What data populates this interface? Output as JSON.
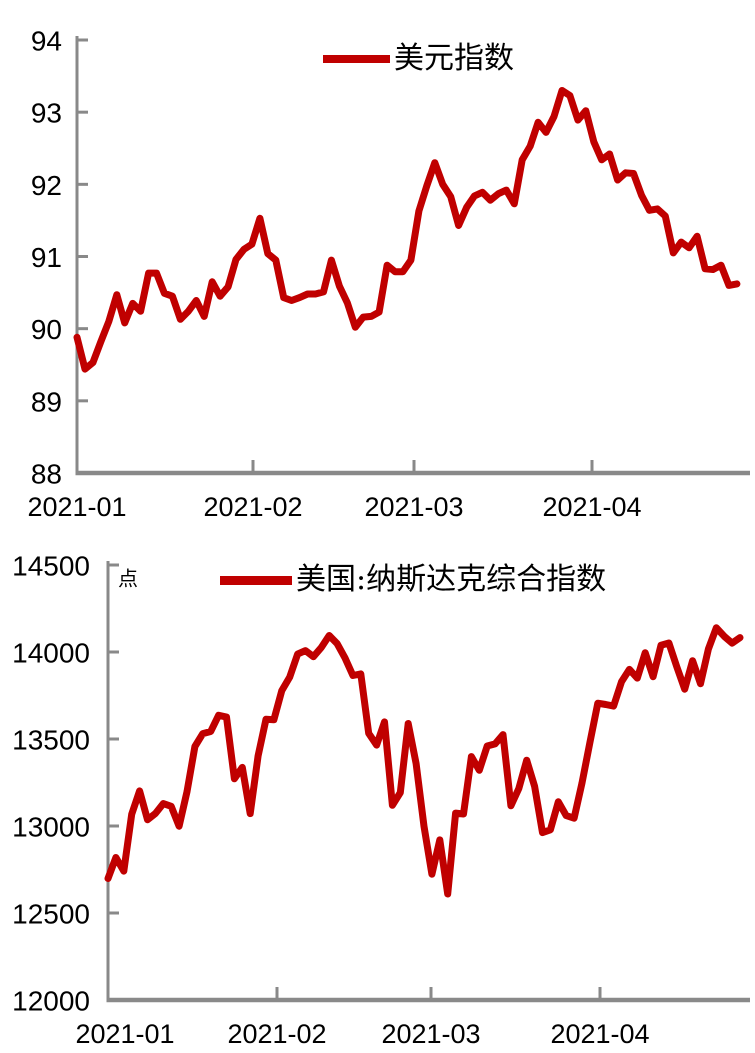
{
  "page": {
    "background": "#ffffff"
  },
  "chart_data": [
    {
      "type": "line",
      "title": "",
      "legend": "美元指数",
      "unit": "",
      "color": "#c00000",
      "axis_color": "#898989",
      "text_color": "#000000",
      "grid": false,
      "legend_position": "top-center",
      "x_tick_labels": [
        "2021-01",
        "2021-02",
        "2021-03",
        "2021-04"
      ],
      "x_range": "2021-01-04 to 2021-04-29, daily trading sessions",
      "ylim": [
        88,
        94
      ],
      "y_ticks": [
        88,
        89,
        90,
        91,
        92,
        93,
        94
      ],
      "series": [
        {
          "name": "美元指数",
          "id": "usd-index",
          "values": [
            89.88,
            89.44,
            89.53,
            89.82,
            90.1,
            90.47,
            90.08,
            90.35,
            90.24,
            90.77,
            90.77,
            90.49,
            90.45,
            90.13,
            90.24,
            90.39,
            90.17,
            90.65,
            90.45,
            90.58,
            90.96,
            91.1,
            91.17,
            91.53,
            91.04,
            90.95,
            90.43,
            90.39,
            90.43,
            90.48,
            90.48,
            90.51,
            90.95,
            90.59,
            90.36,
            90.02,
            90.16,
            90.17,
            90.23,
            90.88,
            90.79,
            90.79,
            90.95,
            91.63,
            91.98,
            92.3,
            92.0,
            91.83,
            91.43,
            91.68,
            91.84,
            91.89,
            91.78,
            91.87,
            91.92,
            91.73,
            92.34,
            92.53,
            92.86,
            92.72,
            92.94,
            93.3,
            93.23,
            92.89,
            93.02,
            92.59,
            92.34,
            92.42,
            92.06,
            92.16,
            92.15,
            91.85,
            91.64,
            91.66,
            91.56,
            91.05,
            91.2,
            91.12,
            91.28,
            90.83,
            90.82,
            90.88,
            90.6,
            90.62
          ]
        }
      ]
    },
    {
      "type": "line",
      "title": "",
      "legend": "美国:纳斯达克综合指数",
      "unit": "点",
      "color": "#c00000",
      "axis_color": "#898989",
      "text_color": "#000000",
      "grid": false,
      "legend_position": "top-center",
      "x_tick_labels": [
        "2021-01",
        "2021-02",
        "2021-03",
        "2021-04"
      ],
      "x_range": "2021-01-04 to 2021-04-29, daily trading sessions",
      "ylim": [
        12000,
        14500
      ],
      "y_ticks": [
        12000,
        12500,
        13000,
        13500,
        14000,
        14500
      ],
      "series": [
        {
          "name": "美国:纳斯达克综合指数",
          "id": "nasdaq-composite",
          "values": [
            12698,
            12819,
            12741,
            13067,
            13202,
            13036,
            13072,
            13129,
            13113,
            12999,
            13197,
            13457,
            13531,
            13543,
            13636,
            13626,
            13271,
            13337,
            13071,
            13403,
            13613,
            13611,
            13778,
            13856,
            13988,
            14008,
            13973,
            14026,
            14095,
            14048,
            13966,
            13865,
            13874,
            13533,
            13465,
            13598,
            13119,
            13192,
            13589,
            13359,
            12998,
            12723,
            12920,
            12609,
            13074,
            13069,
            13399,
            13320,
            13460,
            13472,
            13525,
            13116,
            13215,
            13378,
            13228,
            12962,
            12978,
            13139,
            13060,
            13045,
            13247,
            13480,
            13706,
            13698,
            13689,
            13829,
            13900,
            13850,
            13996,
            13858,
            14039,
            14052,
            13915,
            13786,
            13950,
            13818,
            14017,
            14139,
            14090,
            14051,
            14083
          ]
        }
      ]
    }
  ]
}
